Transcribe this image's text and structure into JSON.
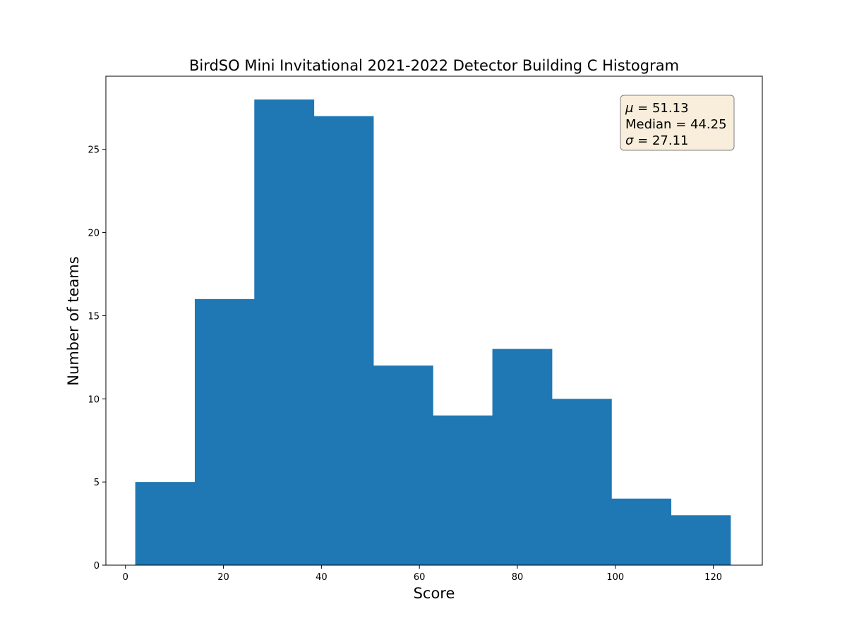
{
  "chart_data": {
    "type": "bar",
    "title": "BirdSO Mini Invitational 2021-2022 Detector Building C Histogram",
    "xlabel": "Score",
    "ylabel": "Number of teams",
    "bin_edges": [
      2,
      14.15,
      26.3,
      38.45,
      50.6,
      62.75,
      74.9,
      87.05,
      99.2,
      111.35,
      123.5
    ],
    "values": [
      5,
      16,
      28,
      27,
      12,
      9,
      13,
      10,
      4,
      3
    ],
    "xlim": [
      -4,
      130
    ],
    "ylim": [
      0,
      29.4
    ],
    "x_ticks": [
      0,
      20,
      40,
      60,
      80,
      100,
      120
    ],
    "y_ticks": [
      0,
      5,
      10,
      15,
      20,
      25
    ],
    "bar_color": "#1f77b4",
    "grid": false,
    "stats_box": {
      "placement": "top-right",
      "mu_symbol": "μ",
      "mu_value": "51.13",
      "median_label": "Median",
      "median_value": "44.25",
      "sigma_symbol": "σ",
      "sigma_value": "27.11",
      "equals": " = ",
      "background": "#f8eedb",
      "border": "#7f7f7f"
    }
  }
}
